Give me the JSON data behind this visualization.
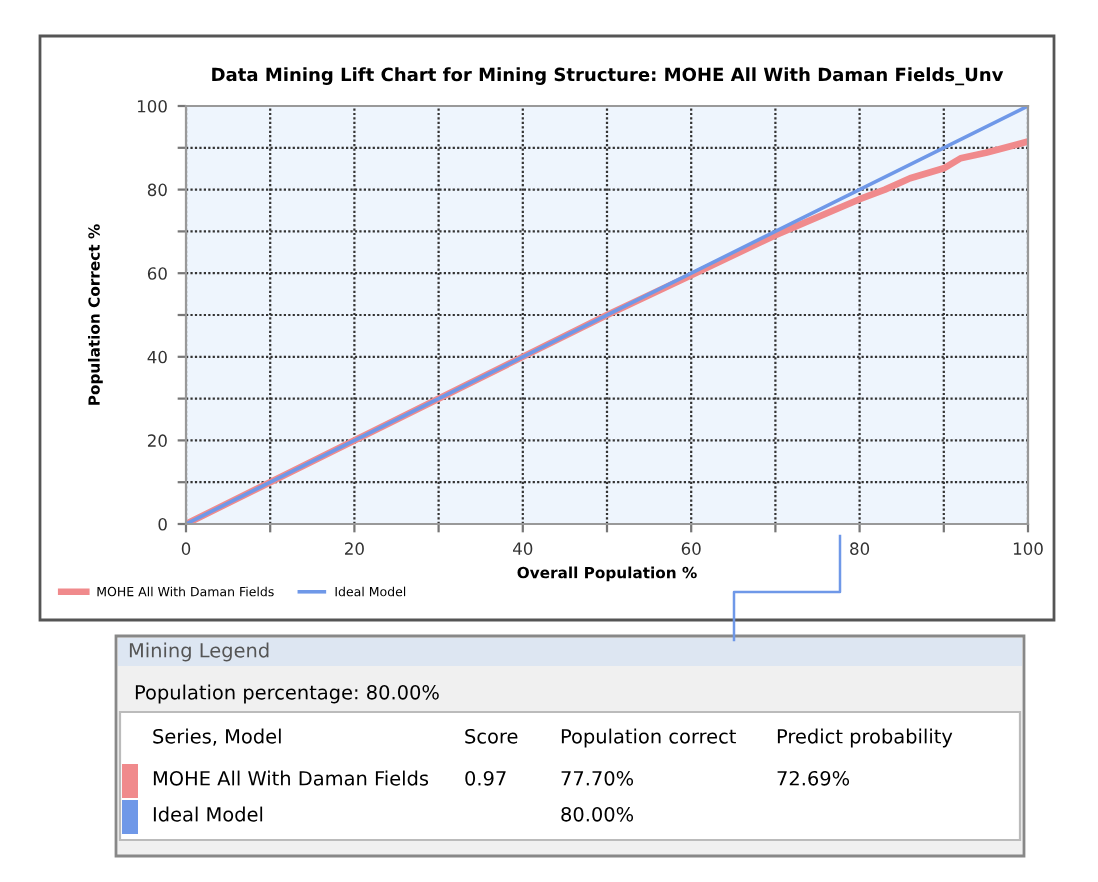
{
  "chart_data": {
    "type": "line",
    "title": "Data Mining Lift Chart for Mining Structure: MOHE All With Daman Fields_Unv",
    "xlabel": "Overall Population %",
    "ylabel": "Population Correct %",
    "series": [
      {
        "name": "MOHE All With Daman Fields",
        "color": "#f08a8c",
        "x": [
          0,
          50,
          60,
          70,
          80,
          83,
          86,
          90,
          92,
          95,
          100
        ],
        "values": [
          0,
          50,
          59.5,
          69.1,
          77.7,
          80,
          82.7,
          85.1,
          87.5,
          88.8,
          91.5
        ]
      },
      {
        "name": "Ideal Model",
        "color": "#6f98e8",
        "x": [
          0,
          100
        ],
        "values": [
          0,
          100
        ]
      }
    ],
    "xlim": [
      0,
      100
    ],
    "ylim": [
      0,
      100
    ],
    "xticks": [
      0,
      {
        "value": 10,
        "label": null
      },
      20,
      {
        "value": 30,
        "label": null
      },
      40,
      {
        "value": 50,
        "label": null
      },
      60,
      {
        "value": 70,
        "label": null
      },
      80,
      {
        "value": 90,
        "label": null
      },
      100
    ],
    "yticks": [
      0,
      {
        "value": 10,
        "label": null
      },
      20,
      {
        "value": 30,
        "label": null
      },
      40,
      {
        "value": 50,
        "label": null
      },
      60,
      {
        "value": 70,
        "label": null
      },
      80,
      {
        "value": 90,
        "label": null
      },
      100
    ],
    "grid": true,
    "legend": "bottom left",
    "line_style": "solid",
    "marker": "none",
    "annotations": [
      "Mining Legend",
      "Population percentage: 80.00%",
      "Series, Model",
      "Score",
      "Population correct",
      "Predict probability",
      "MOHE All With Daman Fields",
      "0.97",
      "77.70%",
      "72.69%",
      "Ideal Model",
      "80.00%"
    ]
  }
}
